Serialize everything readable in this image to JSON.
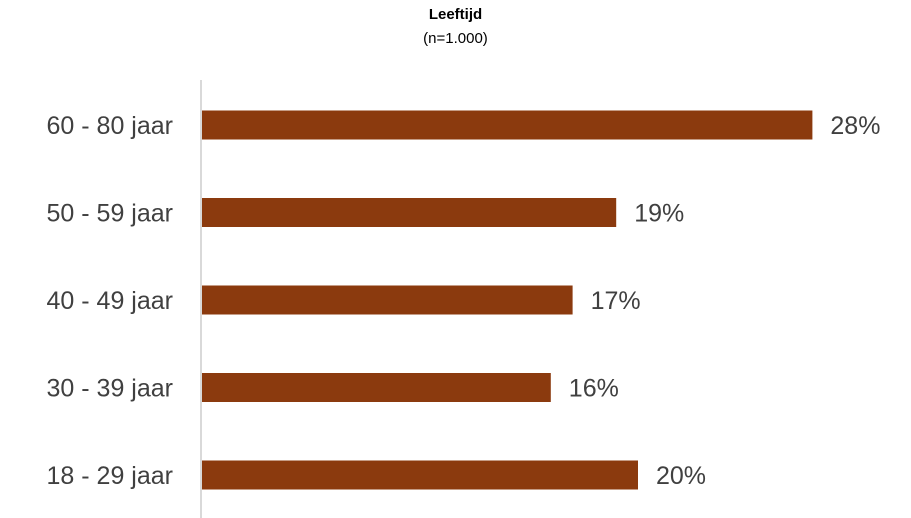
{
  "chart_data": {
    "type": "bar",
    "orientation": "horizontal",
    "title": "Leeftijd",
    "subtitle": "(n=1.000)",
    "categories": [
      "60 - 80 jaar",
      "50 - 59 jaar",
      "40 - 49 jaar",
      "30 - 39 jaar",
      "18 - 29 jaar"
    ],
    "values": [
      28,
      19,
      17,
      16,
      20
    ],
    "value_labels": [
      "28%",
      "19%",
      "17%",
      "16%",
      "20%"
    ],
    "unit": "%",
    "bar_color": "#8B3A0E",
    "axis_color": "#D9D9D9",
    "grid": false,
    "legend": "none"
  }
}
